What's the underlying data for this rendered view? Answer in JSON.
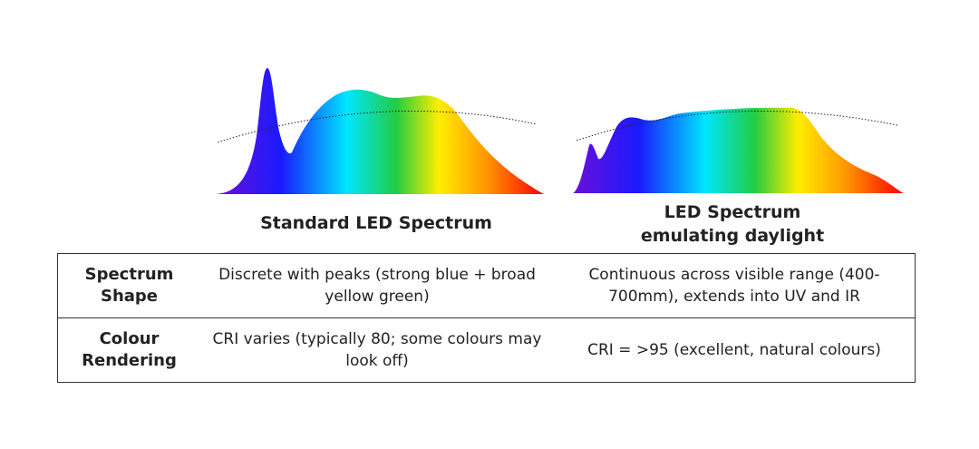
{
  "spectra": [
    {
      "title": [
        "Standard LED Spectrum"
      ]
    },
    {
      "title": [
        "LED Spectrum",
        "emulating daylight"
      ]
    }
  ],
  "table": {
    "rows": [
      [
        "Spectrum Shape",
        "Discrete with peaks (strong blue + broad yellow green)",
        "Continuous across visible range (400-700mm), extends into UV and IR"
      ],
      [
        "Colour Rendering",
        "CRI varies (typically 80; some colours may look off)",
        "CRI = >95 (excellent, natural colours)"
      ]
    ]
  }
}
